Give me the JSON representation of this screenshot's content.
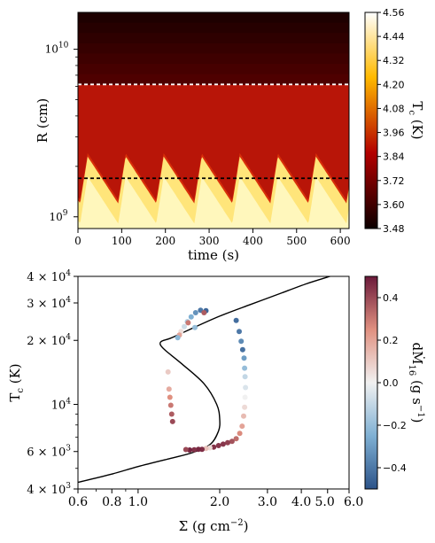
{
  "chart_data": [
    {
      "type": "heatmap",
      "xlabel": "time (s)",
      "ylabel": "R (cm)",
      "x_ticks": [
        "0",
        "100",
        "200",
        "300",
        "400",
        "500",
        "600"
      ],
      "y_tick_1e10": "10",
      "y_tick_1e9": "9",
      "y_tick_base": "10",
      "xlim": [
        0,
        620
      ],
      "ylim_log": [
        8.93,
        10.22
      ],
      "white_dashed_log_r": 9.79,
      "black_dashed_log_r": 9.23,
      "front": {
        "period_s": 87,
        "rise_s": 17,
        "log_r_min": 9.08,
        "log_r_max": 9.36,
        "first_peak_s": 22
      },
      "colorbar": {
        "label": "T",
        "label_sub": "c",
        "label_unit": " (K)",
        "ticks": [
          "4.56",
          "4.44",
          "4.32",
          "4.20",
          "4.08",
          "3.96",
          "3.84",
          "3.72",
          "3.60",
          "3.48"
        ],
        "range": [
          3.48,
          4.56
        ]
      }
    },
    {
      "type": "scatter",
      "xlabel_main": "Σ (g cm",
      "xlabel_sup": "−2",
      "xlabel_tail": ")",
      "ylabel_main": "T",
      "ylabel_sub": "c",
      "ylabel_tail": " (K)",
      "x_ticks": [
        "0.6",
        "0.8",
        "1.0",
        "2.0",
        "3.0",
        "4.0",
        "5.0",
        "6.0"
      ],
      "x_tick_values": [
        0.6,
        0.8,
        1.0,
        2.0,
        3.0,
        4.0,
        5.0,
        6.0
      ],
      "y_ticks": [
        {
          "value": 4000,
          "mant": "4 × 10",
          "exp": "3"
        },
        {
          "value": 6000,
          "mant": "6 × 10",
          "exp": "3"
        },
        {
          "value": 10000,
          "mant": "10",
          "exp": "4"
        },
        {
          "value": 20000,
          "mant": "2 × 10",
          "exp": "4"
        },
        {
          "value": 30000,
          "mant": "3 × 10",
          "exp": "4"
        },
        {
          "value": 40000,
          "mant": "4 × 10",
          "exp": "4"
        }
      ],
      "xlim": [
        0.6,
        6.0
      ],
      "ylim": [
        4000,
        40000
      ],
      "s_curve": [
        [
          0.6,
          4300
        ],
        [
          0.8,
          4700
        ],
        [
          1.0,
          5100
        ],
        [
          1.3,
          5550
        ],
        [
          1.6,
          5950
        ],
        [
          1.85,
          6500
        ],
        [
          1.98,
          7500
        ],
        [
          2.0,
          8500
        ],
        [
          1.95,
          10000
        ],
        [
          1.75,
          12500
        ],
        [
          1.45,
          15500
        ],
        [
          1.27,
          17800
        ],
        [
          1.21,
          19000
        ],
        [
          1.22,
          19800
        ],
        [
          1.32,
          20500
        ],
        [
          1.55,
          22500
        ],
        [
          2.0,
          26000
        ],
        [
          2.6,
          29500
        ],
        [
          3.4,
          33500
        ],
        [
          4.2,
          37000
        ],
        [
          5.1,
          40000
        ]
      ],
      "points": [
        [
          1.78,
          27600,
          -0.45
        ],
        [
          1.7,
          27700,
          -0.4
        ],
        [
          1.63,
          27000,
          -0.33
        ],
        [
          1.57,
          25800,
          -0.25
        ],
        [
          1.52,
          24500,
          -0.15
        ],
        [
          1.48,
          23200,
          -0.08
        ],
        [
          1.44,
          22000,
          0.05
        ],
        [
          1.42,
          21200,
          0.2
        ],
        [
          1.4,
          20600,
          -0.22
        ],
        [
          1.53,
          24200,
          0.3
        ],
        [
          1.75,
          27000,
          0.36
        ],
        [
          1.62,
          23000,
          -0.2
        ],
        [
          2.3,
          24800,
          -0.43
        ],
        [
          2.36,
          22000,
          -0.4
        ],
        [
          2.4,
          19800,
          -0.35
        ],
        [
          2.43,
          18100,
          -0.42
        ],
        [
          2.46,
          16500,
          -0.3
        ],
        [
          2.47,
          14800,
          -0.2
        ],
        [
          2.48,
          13500,
          -0.1
        ],
        [
          2.49,
          12000,
          -0.05
        ],
        [
          2.48,
          10800,
          0.0
        ],
        [
          2.47,
          9700,
          0.06
        ],
        [
          2.45,
          8800,
          0.14
        ],
        [
          2.42,
          7900,
          0.2
        ],
        [
          2.37,
          7300,
          0.26
        ],
        [
          2.3,
          6900,
          0.32
        ],
        [
          2.22,
          6700,
          0.38
        ],
        [
          2.14,
          6600,
          0.42
        ],
        [
          2.06,
          6500,
          0.44
        ],
        [
          1.98,
          6400,
          0.44
        ],
        [
          1.9,
          6300,
          0.45
        ],
        [
          1.84,
          6250,
          0.06
        ],
        [
          1.78,
          6200,
          0.12
        ],
        [
          1.72,
          6150,
          0.46
        ],
        [
          1.67,
          6150,
          0.47
        ],
        [
          1.61,
          6120,
          0.45
        ],
        [
          1.55,
          6100,
          0.48
        ],
        [
          1.5,
          6130,
          0.4
        ],
        [
          1.34,
          8300,
          0.4
        ],
        [
          1.33,
          9000,
          0.36
        ],
        [
          1.32,
          9900,
          0.3
        ],
        [
          1.31,
          10800,
          0.25
        ],
        [
          1.3,
          11800,
          0.18
        ],
        [
          1.29,
          14200,
          0.1
        ]
      ],
      "colorbar": {
        "label": "dṀ",
        "label_sub": "16",
        "label_unit": " (g s",
        "label_sup": "−1",
        "label_tail": ")",
        "ticks": [
          "0.4",
          "0.2",
          "0.0",
          "−0.2",
          "−0.4"
        ],
        "tick_values": [
          0.4,
          0.2,
          0.0,
          -0.2,
          -0.4
        ],
        "range": [
          -0.5,
          0.5
        ]
      }
    }
  ]
}
